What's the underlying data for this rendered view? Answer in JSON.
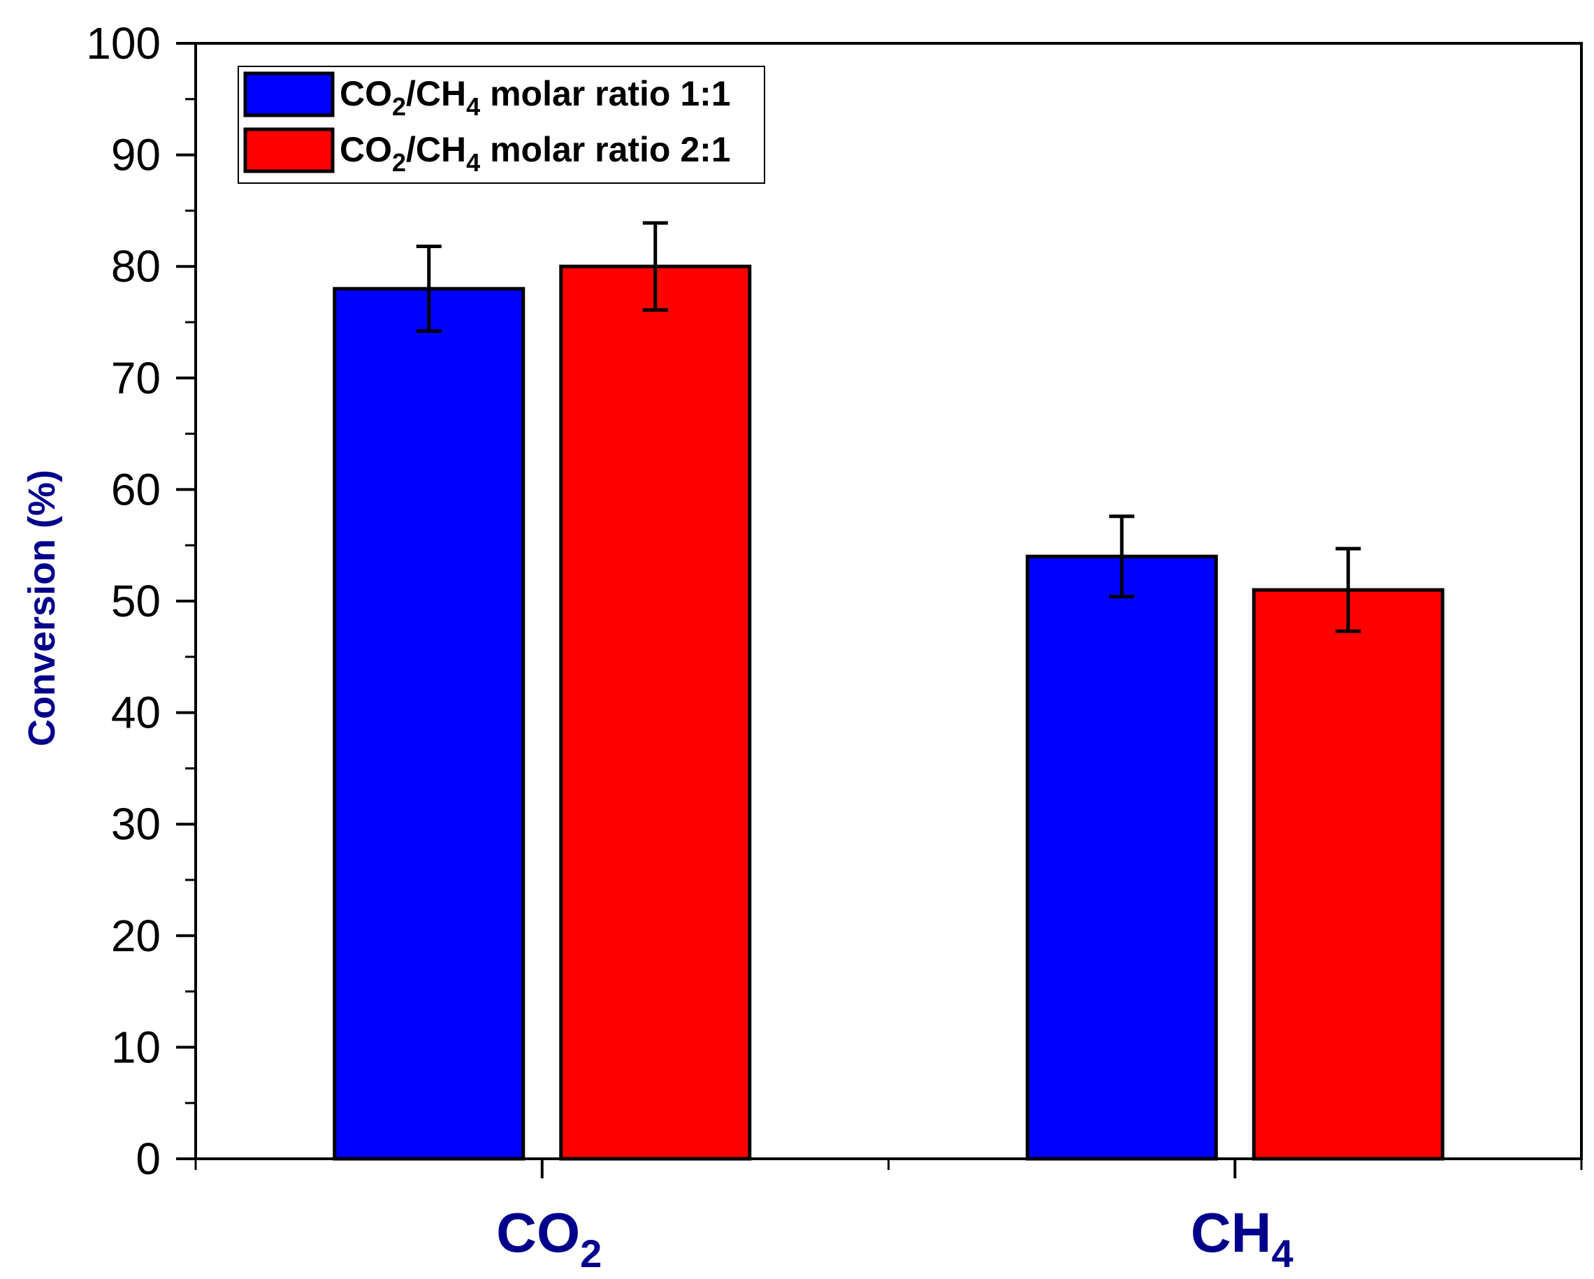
{
  "chart_data": {
    "type": "bar",
    "title": "",
    "xlabel": "",
    "ylabel": "Conversion (%)",
    "ylim": [
      0,
      100
    ],
    "yticks": [
      0,
      10,
      20,
      30,
      40,
      50,
      60,
      70,
      80,
      90,
      100
    ],
    "categories": [
      {
        "id": "co2",
        "base": "CO",
        "sub": "2"
      },
      {
        "id": "ch4",
        "base": "CH",
        "sub": "4"
      }
    ],
    "series": [
      {
        "name": "CO2/CH4 molar ratio 1:1",
        "legend": {
          "part1": "CO",
          "sub1": "2",
          "part2": "/CH",
          "sub2": "4",
          "rest": " molar ratio 1:1"
        },
        "color": "#0000FF",
        "values": [
          78,
          54
        ],
        "errors": [
          3.8,
          3.6
        ]
      },
      {
        "name": "CO2/CH4 molar ratio 2:1",
        "legend": {
          "part1": "CO",
          "sub1": "2",
          "part2": "/CH",
          "sub2": "4",
          "rest": " molar ratio 2:1"
        },
        "color": "#FF0000",
        "values": [
          80,
          51
        ],
        "errors": [
          3.9,
          3.7
        ]
      }
    ],
    "legend_position": "top-left",
    "grid": false
  },
  "colors": {
    "axis": "#000000",
    "label_blue": "#00008B"
  }
}
